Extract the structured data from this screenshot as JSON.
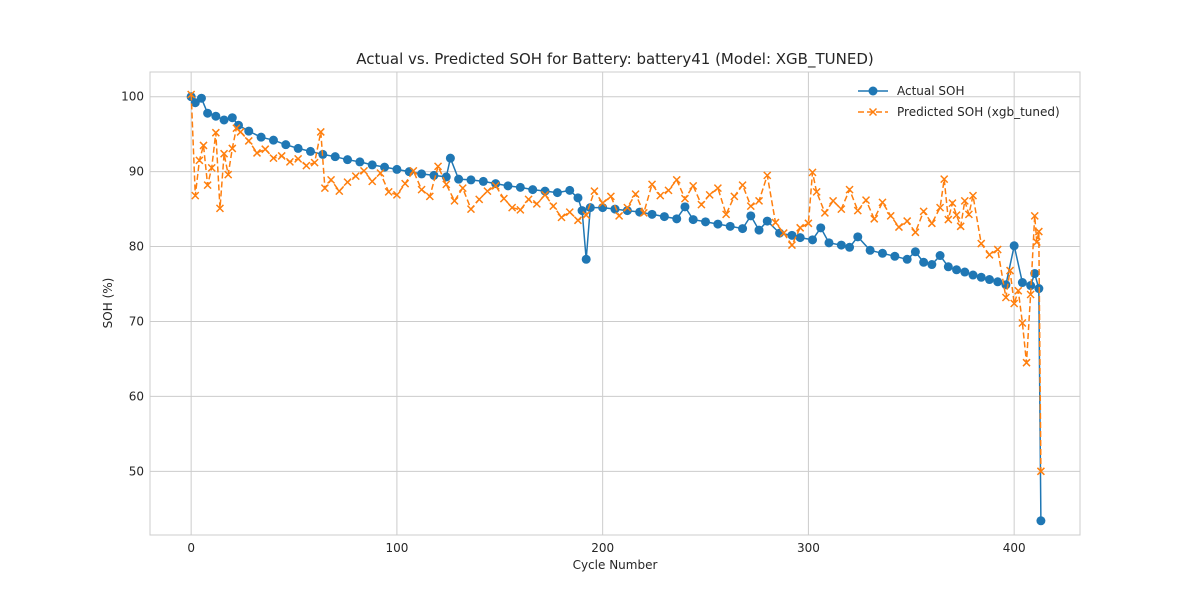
{
  "chart_data": {
    "type": "line",
    "title": "Actual vs. Predicted SOH for Battery: battery41 (Model: XGB_TUNED)",
    "xlabel": "Cycle Number",
    "ylabel": "SOH (%)",
    "xlim": [
      -20,
      432
    ],
    "ylim": [
      41.5,
      103.3
    ],
    "xticks": [
      0,
      100,
      200,
      300,
      400
    ],
    "yticks": [
      50,
      60,
      70,
      80,
      90,
      100
    ],
    "grid": true,
    "legend_position": "top-right",
    "series": [
      {
        "name": "Actual SOH",
        "color": "#1f77b4",
        "marker": "circle",
        "linestyle": "solid",
        "x": [
          0,
          2,
          5,
          8,
          12,
          16,
          20,
          23,
          28,
          34,
          40,
          46,
          52,
          58,
          64,
          70,
          76,
          82,
          88,
          94,
          100,
          106,
          112,
          118,
          124,
          126,
          130,
          136,
          142,
          148,
          154,
          160,
          166,
          172,
          178,
          184,
          188,
          190,
          192,
          194,
          200,
          206,
          212,
          218,
          224,
          230,
          236,
          240,
          244,
          250,
          256,
          262,
          268,
          272,
          276,
          280,
          286,
          292,
          296,
          302,
          306,
          310,
          316,
          320,
          324,
          330,
          336,
          342,
          348,
          352,
          356,
          360,
          364,
          368,
          372,
          376,
          380,
          384,
          388,
          392,
          396,
          400,
          404,
          408,
          410,
          412,
          413
        ],
        "y": [
          100,
          99.2,
          99.8,
          97.8,
          97.4,
          96.9,
          97.2,
          96.2,
          95.4,
          94.6,
          94.2,
          93.6,
          93.1,
          92.7,
          92.3,
          92.0,
          91.6,
          91.3,
          90.9,
          90.6,
          90.3,
          90.0,
          89.7,
          89.5,
          89.3,
          91.8,
          89.0,
          88.9,
          88.7,
          88.4,
          88.1,
          87.9,
          87.6,
          87.4,
          87.2,
          87.5,
          86.5,
          84.8,
          78.3,
          85.2,
          85.2,
          85.0,
          84.8,
          84.6,
          84.3,
          84.0,
          83.7,
          85.3,
          83.6,
          83.3,
          83.0,
          82.7,
          82.4,
          84.1,
          82.2,
          83.4,
          81.8,
          81.5,
          81.2,
          80.9,
          82.5,
          80.5,
          80.2,
          79.9,
          81.3,
          79.5,
          79.1,
          78.7,
          78.3,
          79.3,
          77.9,
          77.6,
          78.8,
          77.3,
          76.9,
          76.6,
          76.2,
          75.9,
          75.6,
          75.3,
          74.9,
          80.1,
          75.2,
          74.8,
          76.4,
          74.4,
          43.4
        ]
      },
      {
        "name": "Predicted SOH (xgb_tuned)",
        "color": "#ff7f0e",
        "marker": "x",
        "linestyle": "dashed",
        "x": [
          0,
          2,
          4,
          6,
          8,
          10,
          12,
          14,
          16,
          18,
          20,
          22,
          24,
          28,
          32,
          36,
          40,
          44,
          48,
          52,
          56,
          60,
          63,
          65,
          68,
          72,
          76,
          80,
          84,
          88,
          92,
          96,
          100,
          104,
          108,
          112,
          116,
          120,
          124,
          128,
          132,
          136,
          140,
          144,
          148,
          152,
          156,
          160,
          164,
          168,
          172,
          176,
          180,
          184,
          188,
          192,
          196,
          200,
          204,
          208,
          212,
          216,
          220,
          224,
          228,
          232,
          236,
          240,
          244,
          248,
          252,
          256,
          260,
          264,
          268,
          272,
          276,
          280,
          284,
          288,
          292,
          296,
          300,
          302,
          304,
          308,
          312,
          316,
          320,
          324,
          328,
          332,
          336,
          340,
          344,
          348,
          352,
          356,
          360,
          364,
          366,
          368,
          370,
          372,
          374,
          376,
          378,
          380,
          384,
          388,
          392,
          396,
          398,
          400,
          402,
          404,
          406,
          408,
          410,
          411,
          412,
          413
        ],
        "y": [
          100.3,
          86.8,
          91.5,
          93.5,
          88.2,
          90.5,
          95.2,
          85.1,
          92.4,
          89.6,
          93.1,
          95.8,
          95.3,
          94.1,
          92.5,
          93.0,
          91.8,
          92.1,
          91.3,
          91.7,
          90.8,
          91.2,
          95.3,
          87.8,
          88.9,
          87.4,
          88.6,
          89.4,
          90.1,
          88.7,
          89.8,
          87.3,
          86.9,
          88.4,
          90.1,
          87.6,
          86.7,
          90.7,
          88.3,
          86.1,
          87.8,
          85.0,
          86.3,
          87.4,
          88.1,
          86.4,
          85.2,
          84.9,
          86.3,
          85.7,
          86.9,
          85.4,
          83.9,
          84.6,
          83.5,
          84.2,
          87.4,
          85.8,
          86.7,
          84.1,
          85.2,
          87.0,
          84.5,
          88.3,
          86.8,
          87.5,
          88.9,
          86.4,
          88.1,
          85.6,
          86.9,
          87.8,
          84.3,
          86.7,
          88.2,
          85.4,
          86.1,
          89.5,
          83.2,
          81.8,
          80.2,
          82.5,
          83.1,
          89.9,
          87.3,
          84.5,
          86.1,
          85.0,
          87.6,
          84.8,
          86.2,
          83.7,
          85.9,
          84.1,
          82.6,
          83.4,
          81.9,
          84.7,
          83.1,
          85.2,
          89.0,
          83.6,
          85.8,
          84.2,
          82.7,
          86.1,
          84.3,
          86.8,
          80.4,
          78.9,
          79.6,
          73.2,
          76.8,
          72.4,
          74.1,
          69.8,
          64.5,
          73.6,
          84.1,
          80.6,
          82.0,
          50.0
        ]
      }
    ]
  }
}
